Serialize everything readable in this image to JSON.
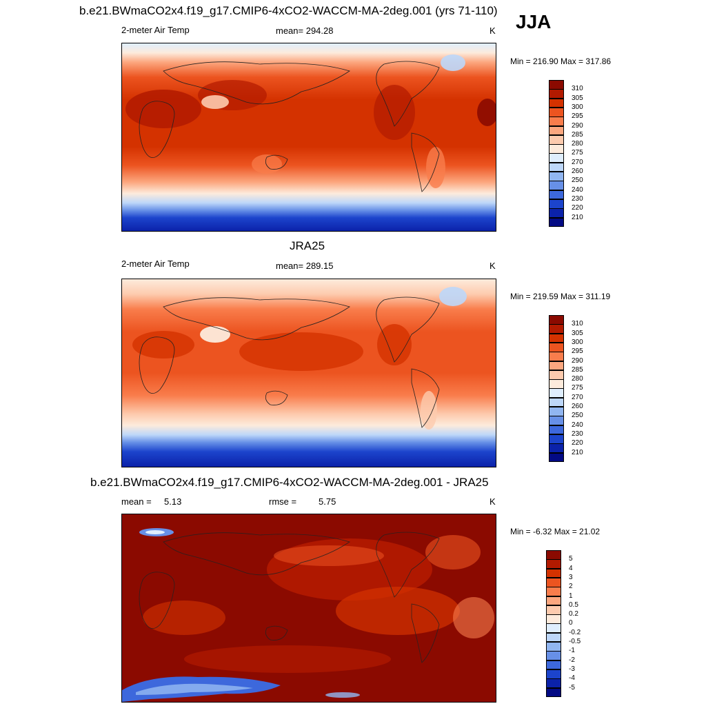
{
  "page": {
    "top_title": "b.e21.BWmaCO2x4.f19_g17.CMIP6-4xCO2-WACCM-MA-2deg.001 (yrs 71-110)",
    "season": "JJA"
  },
  "panels": [
    {
      "id": "model",
      "variable": "2-meter Air Temp",
      "stat": "mean= 294.28",
      "units": "K",
      "minmax": "Min = 216.90 Max = 317.86",
      "colorbar": {
        "labels": [
          "310",
          "305",
          "300",
          "295",
          "290",
          "285",
          "280",
          "275",
          "270",
          "260",
          "250",
          "240",
          "230",
          "220",
          "210"
        ],
        "colors": [
          "#8b0a00",
          "#b21a00",
          "#d43200",
          "#ec5420",
          "#f97d4c",
          "#fca77f",
          "#fdcbae",
          "#fdebdc",
          "#dfeefd",
          "#bdd7f9",
          "#91b6f1",
          "#6790e7",
          "#3d68dc",
          "#1c44cc",
          "#0b22aa",
          "#030a84"
        ]
      }
    },
    {
      "id": "obs",
      "title": "JRA25",
      "variable": "2-meter Air Temp",
      "stat": "mean= 289.15",
      "units": "K",
      "minmax": "Min = 219.59 Max = 311.19",
      "colorbar": {
        "labels": [
          "310",
          "305",
          "300",
          "295",
          "290",
          "285",
          "280",
          "275",
          "270",
          "260",
          "250",
          "240",
          "230",
          "220",
          "210"
        ],
        "colors": [
          "#8b0a00",
          "#b21a00",
          "#d43200",
          "#ec5420",
          "#f97d4c",
          "#fca77f",
          "#fdcbae",
          "#fdebdc",
          "#dfeefd",
          "#bdd7f9",
          "#91b6f1",
          "#6790e7",
          "#3d68dc",
          "#1c44cc",
          "#0b22aa",
          "#030a84"
        ]
      }
    },
    {
      "id": "diff",
      "title": "b.e21.BWmaCO2x4.f19_g17.CMIP6-4xCO2-WACCM-MA-2deg.001 - JRA25",
      "stat_mean_label": "mean =",
      "stat_mean_value": "5.13",
      "stat_rmse_label": "rmse =",
      "stat_rmse_value": "5.75",
      "units": "K",
      "minmax": "Min =  -6.32 Max =  21.02",
      "colorbar": {
        "labels": [
          "5",
          "4",
          "3",
          "2",
          "1",
          "0.5",
          "0.2",
          "0",
          "-0.2",
          "-0.5",
          "-1",
          "-2",
          "-3",
          "-4",
          "-5"
        ],
        "colors": [
          "#8b0a00",
          "#b21a00",
          "#d43200",
          "#ec5420",
          "#f97d4c",
          "#fca77f",
          "#fdcbae",
          "#fdebdc",
          "#dfeefd",
          "#bdd7f9",
          "#91b6f1",
          "#6790e7",
          "#3d68dc",
          "#1c44cc",
          "#0b22aa",
          "#030a84"
        ]
      }
    }
  ]
}
